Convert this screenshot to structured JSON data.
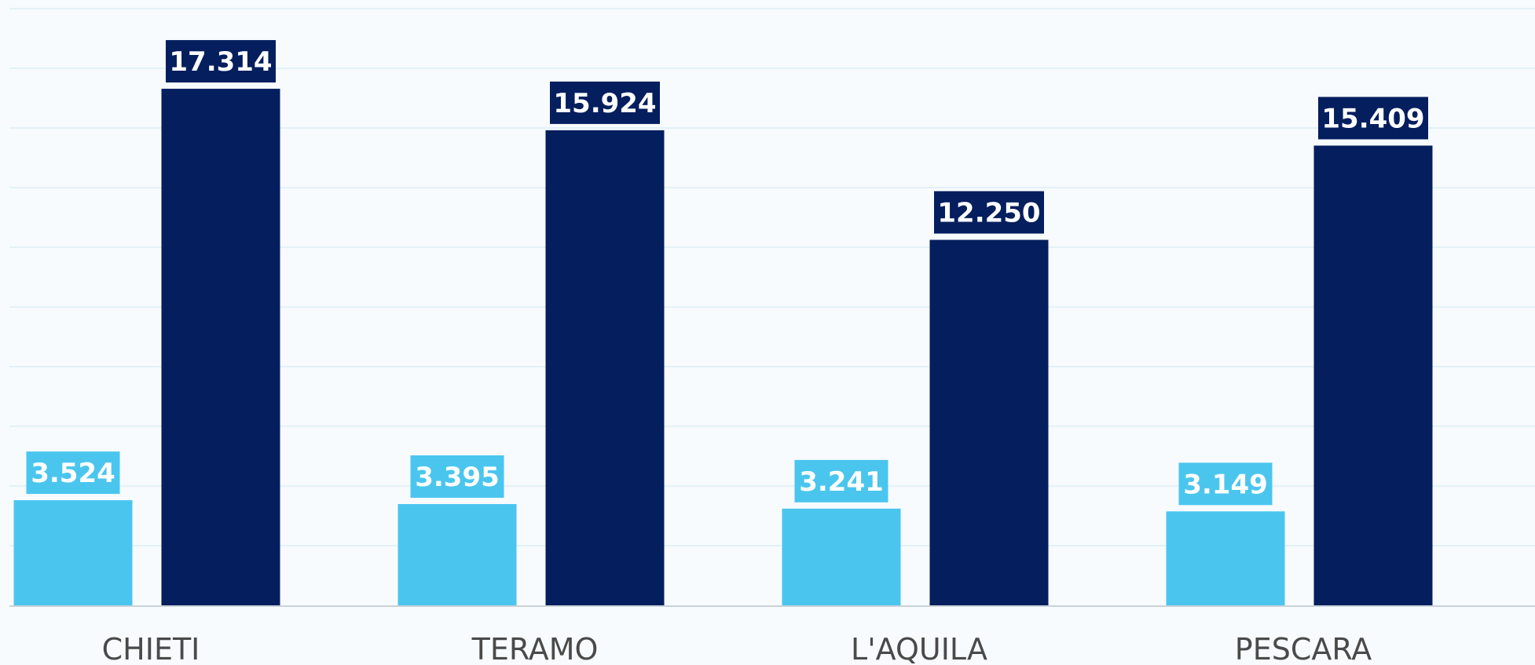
{
  "colors": {
    "background": "#f7fbfd",
    "grid": "#e3f1f8",
    "axis": "#c9d3da",
    "series_light": "#4ac6ee",
    "series_dark": "#041e5e",
    "label_text": "#ffffff",
    "category_text": "#4a4a4a"
  },
  "chart_data": {
    "type": "bar",
    "categories": [
      "CHIETI",
      "TERAMO",
      "L'AQUILA",
      "PESCARA"
    ],
    "series": [
      {
        "values": [
          3.524,
          3.395,
          3.241,
          3.149
        ],
        "labels": [
          "3.524",
          "3.395",
          "3.241",
          "3.149"
        ],
        "color": "#4ac6ee"
      },
      {
        "values": [
          17.314,
          15.924,
          12.25,
          15.409
        ],
        "labels": [
          "17.314",
          "15.924",
          "12.250",
          "15.409"
        ],
        "color": "#041e5e"
      }
    ],
    "ylim": [
      0,
      20
    ],
    "grid": true,
    "legend": "none",
    "title": "",
    "xlabel": "",
    "ylabel": ""
  }
}
